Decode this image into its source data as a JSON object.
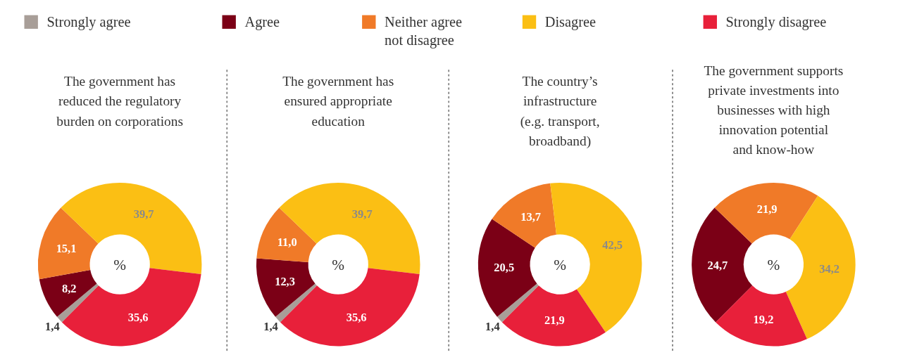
{
  "chart_data": [
    {
      "type": "donut",
      "title": "The government has\nreduced the regulatory\nburden on corporations",
      "categories": [
        "Strongly agree",
        "Agree",
        "Neither agree not disagree",
        "Disagree",
        "Strongly disagree"
      ],
      "values": [
        1.4,
        8.2,
        15.1,
        39.7,
        35.6
      ],
      "colors": [
        "#a89e98",
        "#7b0016",
        "#f07a28",
        "#fbbf14",
        "#e8203a"
      ],
      "value_labels": [
        "1,4",
        "8,2",
        "15,1",
        "39,7",
        "35,6"
      ],
      "annotations": [
        "%"
      ],
      "legend": "top"
    },
    {
      "type": "donut",
      "title": "The government has\nensured appropriate\neducation",
      "values": [
        1.4,
        12.3,
        11.0,
        39.7,
        35.6
      ],
      "colors": [
        "#a89e98",
        "#7b0016",
        "#f07a28",
        "#fbbf14",
        "#e8203a"
      ],
      "value_labels": [
        "1,4",
        "12,3",
        "11,0",
        "39,7",
        "35,6"
      ],
      "annotations": [
        "%"
      ]
    },
    {
      "type": "donut",
      "title": "The country’s\ninfrastructure\n(e.g. transport,\nbroadband)",
      "values": [
        1.4,
        20.5,
        13.7,
        42.5,
        21.9
      ],
      "colors": [
        "#a89e98",
        "#7b0016",
        "#f07a28",
        "#fbbf14",
        "#e8203a"
      ],
      "value_labels": [
        "1,4",
        "20,5",
        "13,7",
        "42,5",
        "21,9"
      ],
      "annotations": [
        "%"
      ]
    },
    {
      "type": "donut",
      "title": "The government supports\nprivate investments into\nbusinesses with high\ninnovation potential\nand know-how",
      "values": [
        0,
        24.7,
        21.9,
        34.2,
        19.2
      ],
      "colors": [
        "#a89e98",
        "#7b0016",
        "#f07a28",
        "#fbbf14",
        "#e8203a"
      ],
      "value_labels": [
        null,
        "24,7",
        "21,9",
        "34,2",
        "19,2"
      ],
      "annotations": [
        "%"
      ]
    }
  ]
}
